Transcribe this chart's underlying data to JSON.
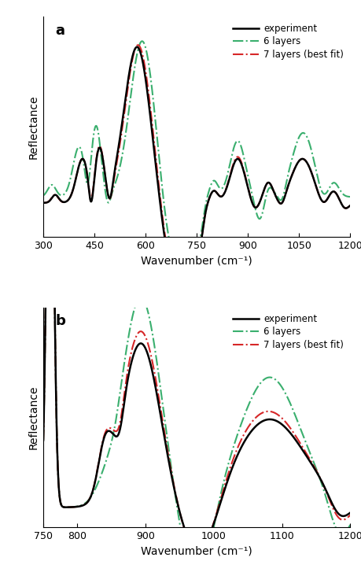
{
  "panel_a": {
    "xlim": [
      300,
      1200
    ],
    "xlabel": "Wavenumber (cm⁻¹)",
    "ylabel": "Reflectance",
    "label": "a",
    "xticks": [
      300,
      450,
      600,
      750,
      900,
      1050,
      1200
    ]
  },
  "panel_b": {
    "xlim": [
      750,
      1200
    ],
    "xlabel": "Wavenumber (cm⁻¹)",
    "ylabel": "Reflectance",
    "label": "b",
    "xticks": [
      750,
      800,
      900,
      1000,
      1100,
      1200
    ]
  },
  "col_exp": "#000000",
  "col_6": "#3aaf6e",
  "col_7": "#d62728",
  "lw_exp": 1.8,
  "lw_6": 1.5,
  "lw_7": 1.5,
  "fig_bgcolor": "#ffffff"
}
